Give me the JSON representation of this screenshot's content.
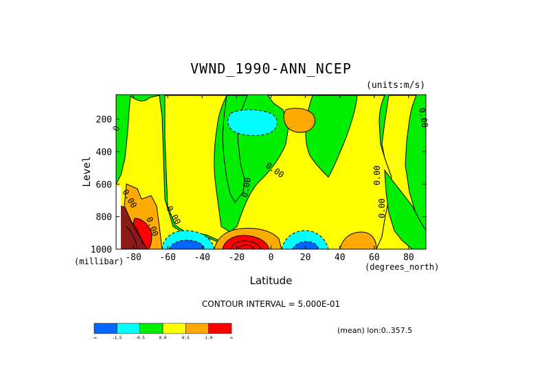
{
  "chart_data": {
    "type": "contour",
    "title": "VWND_1990-ANN_NCEP",
    "units_note": "(units:m/s)",
    "xlabel": "Latitude",
    "x_unit_label": "(degrees_north)",
    "ylabel": "Level",
    "y_unit_label": "(millibar)",
    "xlim": [
      -90,
      90
    ],
    "ylim": [
      1000,
      50
    ],
    "y_inverted": true,
    "x_ticks": [
      -80,
      -60,
      -40,
      -20,
      0,
      20,
      40,
      60,
      80
    ],
    "y_ticks": [
      200,
      400,
      600,
      800,
      1000
    ],
    "contour_interval_text": "CONTOUR INTERVAL = 5.000E-01",
    "mean_note": "(mean) lon:0..357.5",
    "contour_labels": [
      "0",
      "0.00",
      "0.00",
      "0.00",
      "0.00",
      "0.00",
      "0.00",
      "0.00",
      "0.00"
    ],
    "colorbar": {
      "labels": [
        "-∞",
        "-1.5",
        "-0.5",
        "0.0",
        "0.5",
        "1.0",
        "∞"
      ],
      "colors": [
        "#0066ff",
        "#00ffff",
        "#00ee00",
        "#ffff00",
        "#ffaa00",
        "#ff0000"
      ]
    },
    "features": [
      {
        "kind": "min",
        "lat": -10,
        "level": 180,
        "value_range": "-1.0 to -0.5"
      },
      {
        "kind": "max",
        "lat": 15,
        "level": 170,
        "value_range": "0.5 to 1.0"
      },
      {
        "kind": "max",
        "lat": -15,
        "level": 990,
        "value_range": "> 1.0"
      },
      {
        "kind": "min",
        "lat": -55,
        "level": 990,
        "value_range": "-1.5 to -1.0"
      },
      {
        "kind": "min",
        "lat": 17,
        "level": 980,
        "value_range": "-1.0 to -0.5"
      },
      {
        "kind": "max",
        "lat": 50,
        "level": 980,
        "value_range": "0.5 to 1.0"
      },
      {
        "kind": "max",
        "lat": -78,
        "level": 850,
        "value_range": "> 1.0"
      }
    ]
  }
}
